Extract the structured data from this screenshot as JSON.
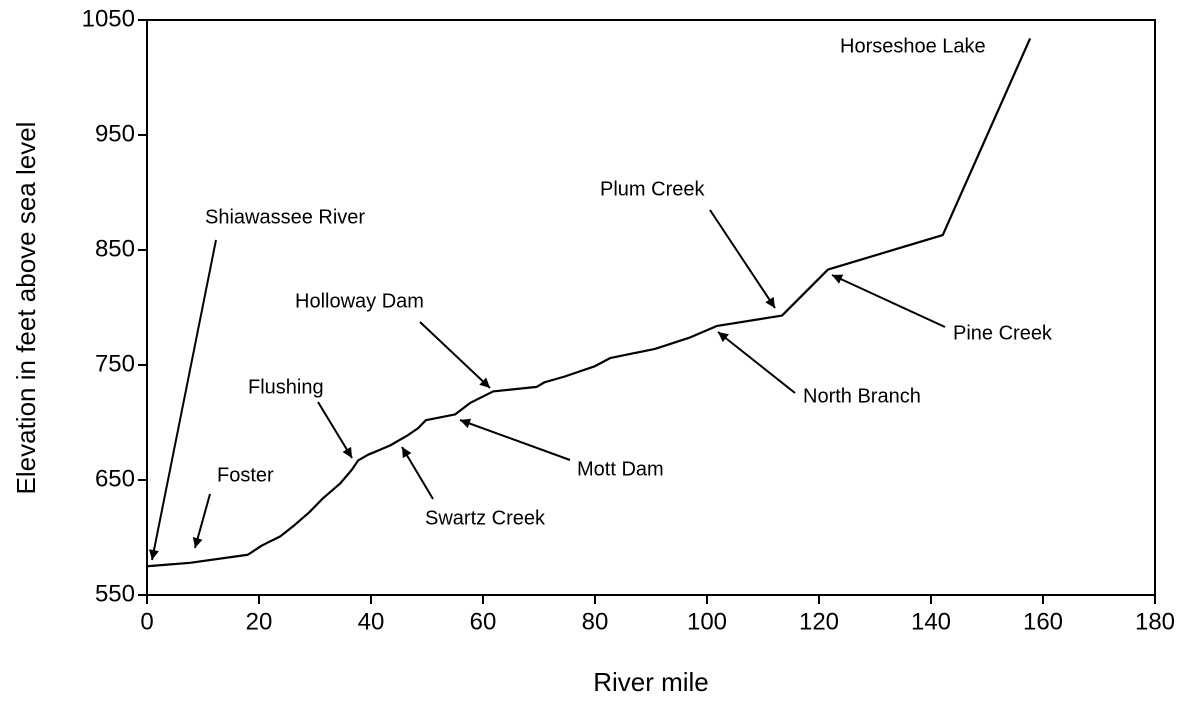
{
  "chart_data": {
    "type": "line",
    "xlabel": "River mile",
    "ylabel": "Elevation in feet above sea level",
    "xlim": [
      0,
      180
    ],
    "ylim": [
      550,
      1050
    ],
    "xticks": [
      0,
      20,
      40,
      60,
      80,
      100,
      120,
      140,
      160,
      180
    ],
    "yticks": [
      550,
      650,
      750,
      850,
      950,
      1050
    ],
    "grid": false,
    "series": [
      {
        "color": "#000000",
        "x": [
          0,
          7.7,
          18,
          20.5,
          23.8,
          26.4,
          29,
          31.4,
          34.5,
          36.6,
          37.7,
          39.5,
          43.4,
          46.6,
          48.4,
          49.8,
          55,
          57.7,
          61.8,
          69.6,
          71,
          74.6,
          80,
          82.7,
          90.7,
          97,
          101.8,
          113.4,
          121.6,
          142.1,
          157.7
        ],
        "values": [
          575,
          578,
          585,
          593,
          601,
          611,
          622,
          634,
          647,
          659,
          667,
          672,
          680,
          689,
          695,
          702,
          707,
          717,
          727,
          731,
          735,
          740,
          749,
          756,
          764,
          774,
          784,
          793,
          833,
          863,
          1034
        ]
      }
    ],
    "annotations": [
      "Shiawassee River",
      "Foster",
      "Flushing",
      "Holloway Dam",
      "Swartz Creek",
      "Mott Dam",
      "Plum Creek",
      "North Branch",
      "Pine Creek",
      "Horseshoe Lake"
    ]
  }
}
